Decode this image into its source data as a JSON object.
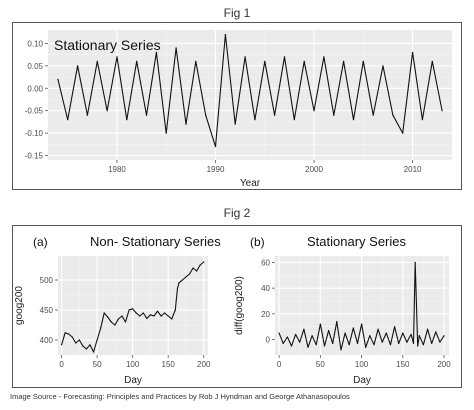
{
  "fig1": {
    "title": "Fig 1"
  },
  "fig2": {
    "title": "Fig 2"
  },
  "source": "Image Source -  Forecasting: Principles and Practices by Rob J Hyndman and George Athanasopoulos",
  "chart_data": [
    {
      "type": "line",
      "label_text": "Stationary Series",
      "xlabel": "Year",
      "ylabel": "",
      "xlim": [
        1973,
        2014
      ],
      "ylim": [
        -0.16,
        0.13
      ],
      "xticks": [
        1980,
        1990,
        2000,
        2010
      ],
      "yticks": [
        0.1,
        0.05,
        0.0,
        -0.05,
        -0.1,
        -0.15
      ],
      "ytick_labels": [
        "0.10",
        "0.05",
        "0.00",
        "-0.05",
        "-0.10",
        "-0.15"
      ],
      "background": "#ebebeb",
      "grid": true,
      "line_color": "#111111",
      "x": [
        1974.0,
        1975.0,
        1976.0,
        1977.0,
        1978.0,
        1979.0,
        1980.0,
        1981.0,
        1982.0,
        1983.0,
        1984.0,
        1985.0,
        1986.0,
        1987.0,
        1988.0,
        1989.0,
        1990.0,
        1991.0,
        1992.0,
        1993.0,
        1994.0,
        1995.0,
        1996.0,
        1997.0,
        1998.0,
        1999.0,
        2000.0,
        2001.0,
        2002.0,
        2003.0,
        2004.0,
        2005.0,
        2006.0,
        2007.0,
        2008.0,
        2009.0,
        2010.0,
        2011.0,
        2012.0,
        2013.0
      ],
      "values": [
        0.02,
        -0.07,
        0.05,
        -0.06,
        0.06,
        -0.05,
        0.07,
        -0.07,
        0.06,
        -0.06,
        0.08,
        -0.1,
        0.09,
        -0.08,
        0.06,
        -0.06,
        -0.13,
        0.12,
        -0.08,
        0.07,
        -0.07,
        0.06,
        -0.06,
        0.07,
        -0.07,
        0.06,
        -0.05,
        0.07,
        -0.06,
        0.06,
        -0.07,
        0.06,
        -0.06,
        0.05,
        -0.06,
        -0.1,
        0.08,
        -0.07,
        0.06,
        -0.05
      ]
    },
    {
      "type": "line",
      "label_text": "(a)",
      "title": "Non- Stationary Series",
      "xlabel": "Day",
      "ylabel": "goog200",
      "xlim": [
        -5,
        206
      ],
      "ylim": [
        375,
        540
      ],
      "xticks": [
        0,
        50,
        100,
        150,
        200
      ],
      "yticks": [
        400,
        450,
        500
      ],
      "background": "#ebebeb",
      "grid": true,
      "line_color": "#111111",
      "x": [
        0,
        5,
        10,
        15,
        20,
        25,
        30,
        35,
        40,
        45,
        50,
        55,
        60,
        65,
        70,
        75,
        80,
        85,
        90,
        95,
        100,
        105,
        110,
        115,
        120,
        125,
        130,
        135,
        140,
        145,
        150,
        155,
        160,
        163,
        165,
        168,
        170,
        175,
        180,
        185,
        190,
        195,
        200
      ],
      "values": [
        392,
        412,
        410,
        405,
        395,
        400,
        390,
        385,
        392,
        380,
        400,
        420,
        445,
        438,
        430,
        425,
        435,
        440,
        430,
        450,
        452,
        445,
        440,
        445,
        436,
        442,
        440,
        448,
        440,
        445,
        440,
        435,
        450,
        485,
        495,
        498,
        500,
        505,
        510,
        520,
        515,
        525,
        530
      ]
    },
    {
      "type": "line",
      "label_text": "(b)",
      "title": "Stationary Series",
      "xlabel": "Day",
      "ylabel": "diff(goog200)",
      "xlim": [
        -5,
        206
      ],
      "ylim": [
        -12,
        65
      ],
      "xticks": [
        0,
        50,
        100,
        150,
        200
      ],
      "yticks": [
        0,
        20,
        40,
        60
      ],
      "background": "#ebebeb",
      "grid": true,
      "line_color": "#111111",
      "x": [
        0,
        5,
        10,
        15,
        20,
        25,
        30,
        35,
        40,
        45,
        50,
        55,
        60,
        65,
        70,
        75,
        80,
        85,
        90,
        95,
        100,
        105,
        110,
        115,
        120,
        125,
        130,
        135,
        140,
        145,
        150,
        155,
        160,
        163,
        165,
        168,
        170,
        175,
        180,
        185,
        190,
        195,
        200
      ],
      "values": [
        5,
        -3,
        2,
        -5,
        4,
        -2,
        8,
        -6,
        3,
        -4,
        12,
        -5,
        7,
        -3,
        14,
        -8,
        5,
        -4,
        9,
        -3,
        12,
        -6,
        3,
        -4,
        8,
        -2,
        5,
        -4,
        10,
        -3,
        5,
        -2,
        4,
        -3,
        60,
        -5,
        3,
        -4,
        8,
        -3,
        6,
        -2,
        3
      ]
    }
  ]
}
